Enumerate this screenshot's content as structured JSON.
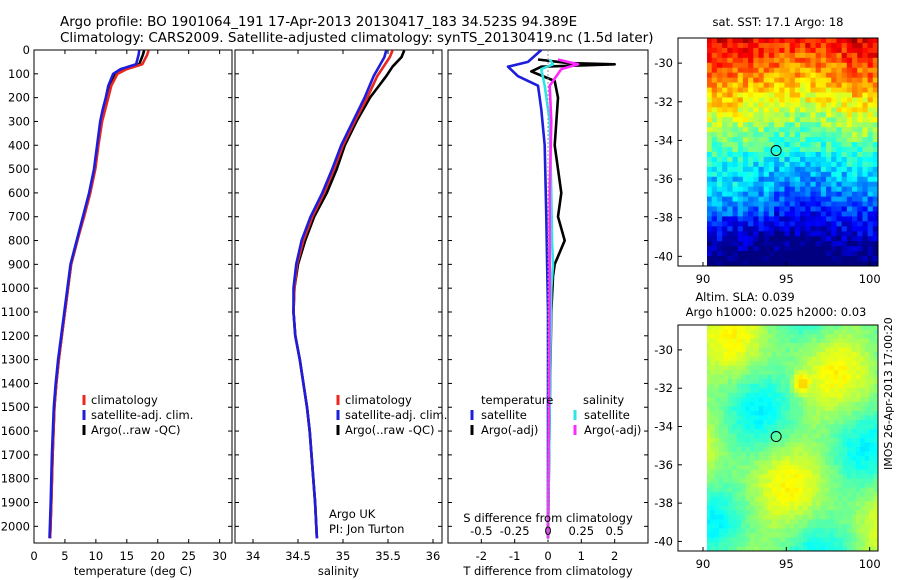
{
  "header": {
    "line1": "Argo profile: BO 1901064_191 17-Apr-2013 20130417_183 34.523S 94.389E",
    "line2": "Climatology: CARS2009. Satellite-adjusted climatology: synTS_20130419.nc (1.5d later)"
  },
  "credit": "IMOS 26-Apr-2013 17:00:20",
  "colors": {
    "red": "#e8281e",
    "blue": "#1d1ddc",
    "black": "#000000",
    "cyan": "#2ee6e6",
    "magenta": "#ff28ff"
  },
  "chart_data": [
    {
      "id": "temperature",
      "type": "line",
      "xlabel": "temperature (deg C)",
      "xlim": [
        0,
        32
      ],
      "xticks": [
        0,
        5,
        10,
        15,
        20,
        25,
        30
      ],
      "ylim": [
        2070,
        0
      ],
      "yticks": [
        0,
        100,
        200,
        300,
        400,
        500,
        600,
        700,
        800,
        900,
        1000,
        1100,
        1200,
        1300,
        1400,
        1500,
        1600,
        1700,
        1800,
        1900,
        2000
      ],
      "legend": [
        "climatology",
        "satellite-adj. clim.",
        "Argo(..raw -QC)"
      ],
      "series": [
        {
          "name": "Argo(..raw -QC)",
          "color": "black",
          "x": [
            17.8,
            17.6,
            17.0,
            14.5,
            13.0,
            12.3,
            11.8,
            11.3,
            10.9,
            10.3,
            9.8,
            9.0,
            8.0,
            7.0,
            6.0,
            5.5,
            5.0,
            4.5,
            4.0,
            3.6,
            3.3,
            3.0,
            2.8,
            2.6
          ],
          "y": [
            2,
            20,
            60,
            80,
            100,
            150,
            200,
            250,
            300,
            400,
            500,
            600,
            700,
            800,
            900,
            1000,
            1100,
            1200,
            1300,
            1400,
            1500,
            1700,
            1900,
            2050
          ]
        },
        {
          "name": "climatology",
          "color": "red",
          "x": [
            18.5,
            18.3,
            17.5,
            15.0,
            13.5,
            12.5,
            12.0,
            11.5,
            11.0,
            10.4,
            9.9,
            9.1,
            8.1,
            7.0,
            6.0,
            5.5,
            5.0,
            4.5,
            4.0,
            3.6,
            3.3,
            3.0,
            2.8,
            2.6
          ],
          "y": [
            2,
            20,
            60,
            80,
            100,
            150,
            200,
            250,
            300,
            400,
            500,
            600,
            700,
            800,
            900,
            1000,
            1100,
            1200,
            1300,
            1400,
            1500,
            1700,
            1900,
            2050
          ]
        },
        {
          "name": "satellite-adj. clim.",
          "color": "blue",
          "x": [
            17.0,
            16.9,
            16.5,
            14.0,
            12.8,
            12.0,
            11.6,
            11.1,
            10.7,
            10.2,
            9.7,
            8.9,
            7.9,
            6.9,
            5.9,
            5.4,
            4.9,
            4.4,
            3.9,
            3.5,
            3.2,
            2.9,
            2.7,
            2.5
          ],
          "y": [
            2,
            20,
            60,
            80,
            100,
            150,
            200,
            250,
            300,
            400,
            500,
            600,
            700,
            800,
            900,
            1000,
            1100,
            1200,
            1300,
            1400,
            1500,
            1700,
            1900,
            2050
          ]
        }
      ]
    },
    {
      "id": "salinity",
      "type": "line",
      "xlabel": "salinity",
      "xlim": [
        33.8,
        36.1
      ],
      "xticks": [
        34,
        34.5,
        35,
        35.5,
        36
      ],
      "xticklabels": [
        "34",
        "34.5",
        "35",
        "35.5",
        "36"
      ],
      "ylim": [
        2070,
        0
      ],
      "legend": [
        "climatology",
        "satellite-adj. clim.",
        "Argo(..raw -QC)"
      ],
      "annotation": [
        "Argo UK",
        "PI: Jon Turton"
      ],
      "series": [
        {
          "name": "Argo(..raw -QC)",
          "color": "black",
          "x": [
            35.68,
            35.65,
            35.55,
            35.48,
            35.3,
            35.15,
            35.02,
            34.93,
            34.82,
            34.68,
            34.58,
            34.5,
            34.46,
            34.45,
            34.47,
            34.52,
            34.56,
            34.6,
            34.63,
            34.65,
            34.67,
            34.69,
            34.71
          ],
          "y": [
            2,
            30,
            70,
            110,
            200,
            300,
            400,
            500,
            600,
            700,
            800,
            900,
            1000,
            1100,
            1200,
            1300,
            1400,
            1500,
            1600,
            1700,
            1800,
            1900,
            2050
          ]
        },
        {
          "name": "climatology",
          "color": "red",
          "x": [
            35.55,
            35.52,
            35.45,
            35.38,
            35.27,
            35.13,
            35.0,
            34.9,
            34.79,
            34.66,
            34.56,
            34.49,
            34.46,
            34.45,
            34.47,
            34.52,
            34.56,
            34.6,
            34.63,
            34.65,
            34.67,
            34.69,
            34.71
          ],
          "y": [
            2,
            30,
            70,
            110,
            200,
            300,
            400,
            500,
            600,
            700,
            800,
            900,
            1000,
            1100,
            1200,
            1300,
            1400,
            1500,
            1600,
            1700,
            1800,
            1900,
            2050
          ]
        },
        {
          "name": "satellite-adj. clim.",
          "color": "blue",
          "x": [
            35.48,
            35.46,
            35.4,
            35.34,
            35.24,
            35.11,
            34.98,
            34.88,
            34.77,
            34.64,
            34.54,
            34.48,
            34.45,
            34.45,
            34.47,
            34.52,
            34.56,
            34.6,
            34.63,
            34.65,
            34.67,
            34.69,
            34.71
          ],
          "y": [
            2,
            30,
            70,
            110,
            200,
            300,
            400,
            500,
            600,
            700,
            800,
            900,
            1000,
            1100,
            1200,
            1300,
            1400,
            1500,
            1600,
            1700,
            1800,
            1900,
            2050
          ]
        }
      ]
    },
    {
      "id": "difference",
      "type": "line",
      "xlabel": "T difference from climatology",
      "xlabel_top": "S difference from climatology",
      "xlim": [
        -3,
        3
      ],
      "xticks": [
        -2,
        -1,
        0,
        1,
        2
      ],
      "xticks_s": [
        -0.5,
        -0.25,
        0,
        0.25,
        0.5
      ],
      "xticklabels_s": [
        "-0.5",
        "-0.25",
        "0",
        "0.25",
        "0.5"
      ],
      "ylim": [
        2070,
        0
      ],
      "legend_titles": [
        "temperature",
        "salinity"
      ],
      "legend": [
        "satellite",
        "Argo(-adj)",
        "satellite",
        "Argo(-adj)"
      ],
      "series": [
        {
          "name": "temperature satellite",
          "color": "blue",
          "x": [
            -0.2,
            -0.6,
            -1.2,
            -0.9,
            -0.3,
            -0.2,
            -0.1,
            -0.05,
            0.0,
            0.0,
            0.0
          ],
          "y": [
            0,
            50,
            70,
            110,
            150,
            250,
            400,
            700,
            1100,
            1500,
            2050
          ]
        },
        {
          "name": "temperature Argo(-adj)",
          "color": "black",
          "x": [
            -0.3,
            0.6,
            2.0,
            -0.2,
            -0.5,
            0.2,
            0.3,
            0.2,
            0.4,
            0.3,
            0.5,
            0.2,
            0.15,
            0.1,
            0.05,
            0.0
          ],
          "y": [
            40,
            55,
            60,
            70,
            90,
            130,
            200,
            400,
            600,
            700,
            800,
            900,
            950,
            1100,
            1500,
            2050
          ]
        },
        {
          "name": "salinity satellite",
          "color": "cyan",
          "x": [
            0.05,
            0.15,
            -0.2,
            -0.1,
            0.05,
            0.1,
            0.12,
            0.15,
            0.1,
            0.05,
            0.0
          ],
          "y": [
            40,
            60,
            80,
            150,
            300,
            600,
            800,
            900,
            1000,
            1500,
            2050
          ]
        },
        {
          "name": "salinity Argo(-adj)",
          "color": "magenta",
          "x": [
            0.3,
            0.9,
            0.4,
            0.05,
            0.1,
            0.05,
            0.05,
            0.0
          ],
          "y": [
            40,
            60,
            80,
            150,
            300,
            600,
            1000,
            2050
          ]
        }
      ]
    },
    {
      "id": "sst-map",
      "type": "heatmap",
      "title": "sat. SST: 17.1 Argo: 18",
      "xlim": [
        88.5,
        100.5
      ],
      "ylim": [
        -40.5,
        -28.7
      ],
      "xticks": [
        90,
        95,
        100
      ],
      "yticks": [
        -30,
        -32,
        -34,
        -36,
        -38,
        -40
      ],
      "marker": {
        "lon": 94.389,
        "lat": -34.523
      }
    },
    {
      "id": "sla-map",
      "type": "heatmap",
      "title": [
        "Altim. SLA: 0.039",
        "Argo h1000: 0.025 h2000: 0.03"
      ],
      "xlim": [
        88.5,
        100.5
      ],
      "ylim": [
        -40.5,
        -28.7
      ],
      "xticks": [
        90,
        95,
        100
      ],
      "yticks": [
        -30,
        -32,
        -34,
        -36,
        -38,
        -40
      ],
      "marker": {
        "lon": 94.389,
        "lat": -34.523
      }
    }
  ]
}
